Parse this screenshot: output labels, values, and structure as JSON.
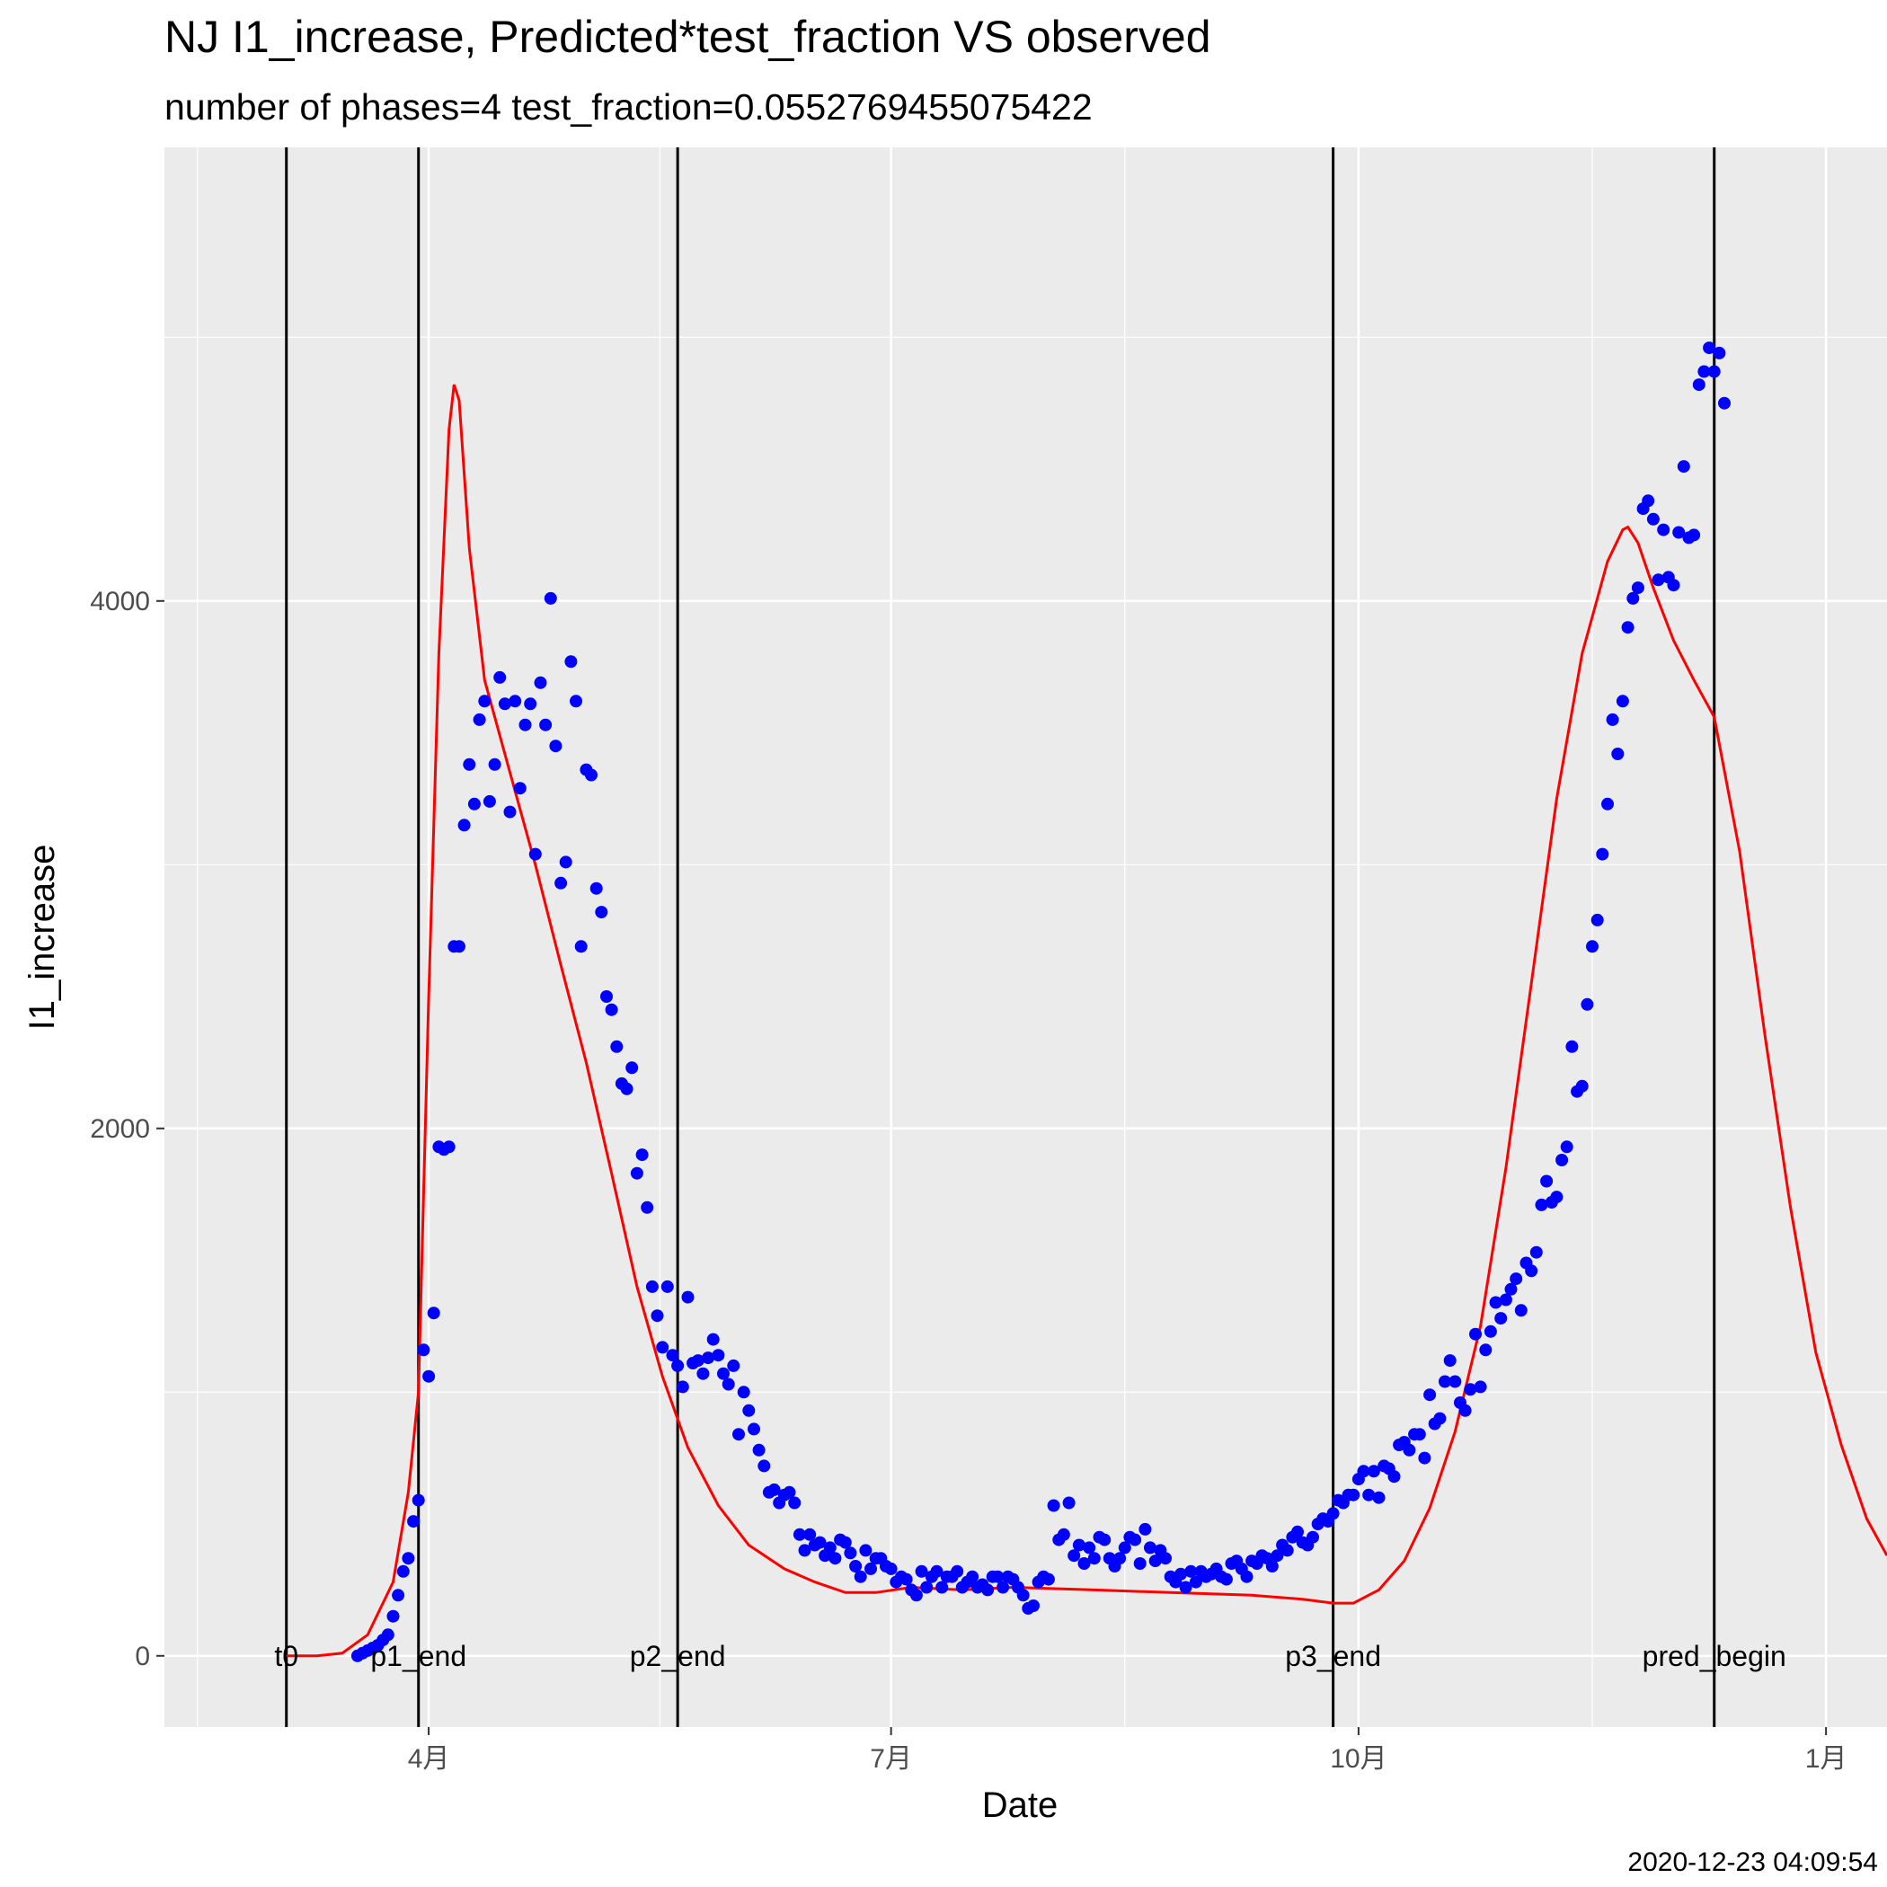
{
  "chart_data": {
    "type": "scatter",
    "title": "NJ I1_increase, Predicted*test_fraction VS observed",
    "subtitle": "number of phases=4   test_fraction=0.0552769455075422",
    "xlabel": "Date",
    "ylabel": "I1_increase",
    "timestamp": "2020-12-23 04:09:54",
    "xlim": [
      "2020-02-09",
      "2021-01-13"
    ],
    "ylim": [
      -270,
      5720
    ],
    "x_ticks": [
      {
        "date": "2020-04-01",
        "label": "4月"
      },
      {
        "date": "2020-07-01",
        "label": "7月"
      },
      {
        "date": "2020-10-01",
        "label": "10月"
      },
      {
        "date": "2021-01-01",
        "label": "1月"
      }
    ],
    "y_ticks": [
      0,
      2000,
      4000
    ],
    "grid": true,
    "colors": {
      "panel": "#ebebeb",
      "grid": "#ffffff",
      "observed": "#0000ff",
      "predicted": "#ff0000",
      "vline": "#000000"
    },
    "vlines": [
      {
        "date": "2020-03-04",
        "label": "t0"
      },
      {
        "date": "2020-03-30",
        "label": "p1_end"
      },
      {
        "date": "2020-05-20",
        "label": "p2_end"
      },
      {
        "date": "2020-09-26",
        "label": "p3_end"
      },
      {
        "date": "2020-12-10",
        "label": "pred_begin"
      }
    ],
    "series": [
      {
        "kind": "points",
        "x_start": "2020-03-18",
        "values": [
          0,
          10,
          20,
          30,
          40,
          60,
          80,
          150,
          230,
          320,
          370,
          510,
          590,
          1160,
          1060,
          1300,
          1930,
          1920,
          1930,
          2690,
          2690,
          3150,
          3380,
          3230,
          3550,
          3620,
          3240,
          3380,
          3710,
          3610,
          3200,
          3620,
          3290,
          3530,
          3610,
          3040,
          3690,
          3530,
          4010,
          3450,
          2930,
          3010,
          3770,
          3620,
          2690,
          3360,
          3340,
          2910,
          2820,
          2500,
          2450,
          2310,
          2170,
          2150,
          2230,
          1830,
          1900,
          1700,
          1400,
          1290,
          1170,
          1400,
          1140,
          1100,
          1020,
          1360,
          1110,
          1120,
          1070,
          1130,
          1200,
          1140,
          1070,
          1030,
          1100,
          840,
          1000,
          930,
          860,
          780,
          720,
          620,
          630,
          580,
          610,
          620,
          580,
          460,
          400,
          460,
          420,
          430,
          380,
          410,
          370,
          440,
          430,
          390,
          340,
          300,
          400,
          330,
          370,
          370,
          340,
          330,
          280,
          300,
          290,
          250,
          230,
          320,
          260,
          300,
          320,
          260,
          300,
          300,
          320,
          260,
          280,
          300,
          260,
          270,
          250,
          300,
          300,
          260,
          300,
          290,
          260,
          230,
          180,
          190,
          280,
          300,
          290,
          570,
          440,
          460,
          580,
          380,
          420,
          350,
          410,
          370,
          450,
          440,
          370,
          340,
          370,
          410,
          450,
          440,
          350,
          480,
          410,
          360,
          400,
          370,
          300,
          280,
          310,
          260,
          320,
          280,
          320,
          300,
          310,
          330,
          300,
          290,
          350,
          360,
          330,
          300,
          360,
          350,
          380,
          370,
          340,
          380,
          420,
          400,
          450,
          470,
          430,
          420,
          450,
          500,
          520,
          510,
          540,
          590,
          580,
          610,
          610,
          670,
          700,
          610,
          700,
          600,
          720,
          710,
          680,
          800,
          810,
          780,
          840,
          840,
          750,
          990,
          880,
          900,
          1040,
          1120,
          1040,
          960,
          930,
          1010,
          1220,
          1020,
          1160,
          1230,
          1340,
          1280,
          1350,
          1390,
          1430,
          1310,
          1490,
          1460,
          1530,
          1710,
          1800,
          1720,
          1740,
          1880,
          1930,
          2310,
          2140,
          2160,
          2470,
          2690,
          2790,
          3040,
          3230,
          3550,
          3420,
          3620,
          3900,
          4010,
          4050,
          4350,
          4380,
          4310,
          4080,
          4270,
          4090,
          4060,
          4260,
          4510,
          4240,
          4250,
          4820,
          4870,
          4960,
          4870,
          4940,
          4750
        ]
      },
      {
        "kind": "line",
        "name": "Predicted*test_fraction",
        "points": [
          [
            "2020-03-04",
            0
          ],
          [
            "2020-03-10",
            0
          ],
          [
            "2020-03-15",
            10
          ],
          [
            "2020-03-20",
            80
          ],
          [
            "2020-03-25",
            280
          ],
          [
            "2020-03-28",
            620
          ],
          [
            "2020-03-30",
            1000
          ],
          [
            "2020-04-01",
            2500
          ],
          [
            "2020-04-03",
            3800
          ],
          [
            "2020-04-05",
            4650
          ],
          [
            "2020-04-06",
            4820
          ],
          [
            "2020-04-07",
            4760
          ],
          [
            "2020-04-09",
            4200
          ],
          [
            "2020-04-12",
            3700
          ],
          [
            "2020-04-17",
            3350
          ],
          [
            "2020-04-22",
            3000
          ],
          [
            "2020-04-27",
            2620
          ],
          [
            "2020-05-02",
            2250
          ],
          [
            "2020-05-07",
            1830
          ],
          [
            "2020-05-12",
            1400
          ],
          [
            "2020-05-17",
            1060
          ],
          [
            "2020-05-22",
            790
          ],
          [
            "2020-05-28",
            570
          ],
          [
            "2020-06-03",
            420
          ],
          [
            "2020-06-10",
            330
          ],
          [
            "2020-06-16",
            280
          ],
          [
            "2020-06-22",
            240
          ],
          [
            "2020-06-28",
            240
          ],
          [
            "2020-07-05",
            260
          ],
          [
            "2020-07-15",
            250
          ],
          [
            "2020-07-25",
            260
          ],
          [
            "2020-08-10",
            250
          ],
          [
            "2020-08-25",
            240
          ],
          [
            "2020-09-10",
            230
          ],
          [
            "2020-09-20",
            215
          ],
          [
            "2020-09-26",
            200
          ],
          [
            "2020-09-30",
            200
          ],
          [
            "2020-10-05",
            250
          ],
          [
            "2020-10-10",
            360
          ],
          [
            "2020-10-15",
            560
          ],
          [
            "2020-10-20",
            850
          ],
          [
            "2020-10-25",
            1250
          ],
          [
            "2020-10-30",
            1850
          ],
          [
            "2020-11-04",
            2550
          ],
          [
            "2020-11-09",
            3250
          ],
          [
            "2020-11-14",
            3800
          ],
          [
            "2020-11-19",
            4150
          ],
          [
            "2020-11-22",
            4270
          ],
          [
            "2020-11-23",
            4280
          ],
          [
            "2020-11-25",
            4220
          ],
          [
            "2020-11-28",
            4050
          ],
          [
            "2020-12-02",
            3850
          ],
          [
            "2020-12-06",
            3700
          ],
          [
            "2020-12-10",
            3560
          ],
          [
            "2020-12-15",
            3050
          ],
          [
            "2020-12-20",
            2350
          ],
          [
            "2020-12-25",
            1700
          ],
          [
            "2020-12-30",
            1150
          ],
          [
            "2021-01-04",
            800
          ],
          [
            "2021-01-09",
            520
          ],
          [
            "2021-01-13",
            380
          ]
        ]
      }
    ]
  }
}
